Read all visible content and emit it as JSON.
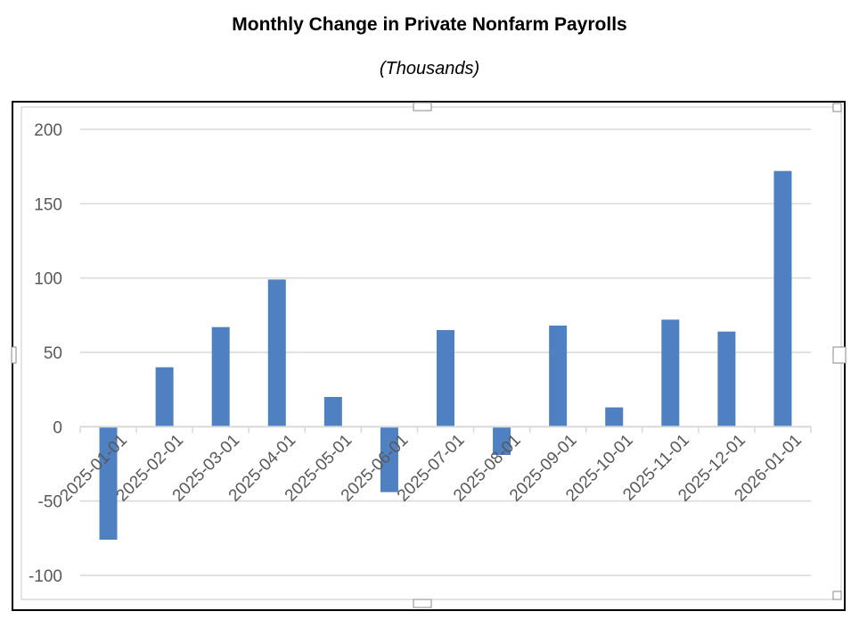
{
  "chart_data": {
    "type": "bar",
    "title": "Monthly Change in Private Nonfarm Payrolls",
    "subtitle": "(Thousands)",
    "categories": [
      "2025-01-01",
      "2025-02-01",
      "2025-03-01",
      "2025-04-01",
      "2025-05-01",
      "2025-06-01",
      "2025-07-01",
      "2025-08-01",
      "2025-09-01",
      "2025-10-01",
      "2025-11-01",
      "2025-12-01",
      "2026-01-01"
    ],
    "values": [
      -76,
      40,
      67,
      99,
      20,
      -44,
      65,
      -19,
      68,
      13,
      72,
      64,
      172
    ],
    "ylim": [
      -100,
      200
    ],
    "yticks": [
      "200",
      "150",
      "100",
      "50",
      "0",
      "-50",
      "-100"
    ],
    "grid": true,
    "bar_color": "#4f81c2"
  }
}
